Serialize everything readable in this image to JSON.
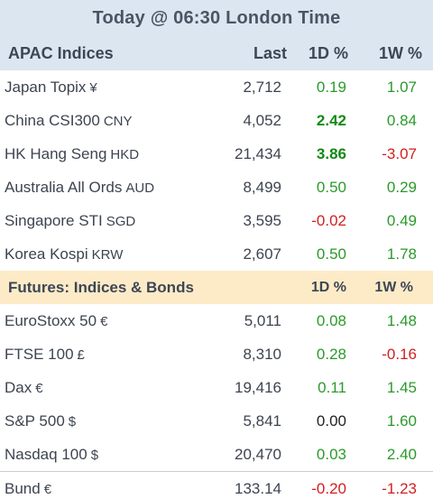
{
  "title": "Today @ 06:30 London Time",
  "apac": {
    "header": {
      "name": "APAC Indices",
      "last": "Last",
      "d1": "1D %",
      "w1": "1W %"
    },
    "rows": [
      {
        "name": "Japan Topix",
        "ccy": "¥",
        "last": "2,712",
        "d1": "0.19",
        "w1": "1.07"
      },
      {
        "name": "China CSI300",
        "ccy": "CNY",
        "last": "4,052",
        "d1": "2.42",
        "w1": "0.84"
      },
      {
        "name": "HK Hang Seng",
        "ccy": "HKD",
        "last": "21,434",
        "d1": "3.86",
        "w1": "-3.07"
      },
      {
        "name": "Australia All Ords",
        "ccy": "AUD",
        "last": "8,499",
        "d1": "0.50",
        "w1": "0.29"
      },
      {
        "name": "Singapore STI",
        "ccy": "SGD",
        "last": "3,595",
        "d1": "-0.02",
        "w1": "0.49"
      },
      {
        "name": "Korea Kospi",
        "ccy": "KRW",
        "last": "2,607",
        "d1": "0.50",
        "w1": "1.78"
      }
    ]
  },
  "futures": {
    "header": {
      "name": "Futures: Indices & Bonds",
      "d1": "1D %",
      "w1": "1W %"
    },
    "rows": [
      {
        "name": "EuroStoxx 50",
        "ccy": "€",
        "last": "5,011",
        "d1": "0.08",
        "w1": "1.48"
      },
      {
        "name": "FTSE 100",
        "ccy": "£",
        "last": "8,310",
        "d1": "0.28",
        "w1": "-0.16"
      },
      {
        "name": "Dax",
        "ccy": "€",
        "last": "19,416",
        "d1": "0.11",
        "w1": "1.45"
      },
      {
        "name": "S&P 500",
        "ccy": "$",
        "last": "5,841",
        "d1": "0.00",
        "w1": "1.60"
      },
      {
        "name": "Nasdaq 100",
        "ccy": "$",
        "last": "20,470",
        "d1": "0.03",
        "w1": "2.40"
      },
      {
        "name": "Bund",
        "ccy": "€",
        "last": "133.14",
        "d1": "-0.20",
        "w1": "-1.23"
      }
    ]
  },
  "colors": {
    "positive": "#2a9a2a",
    "negative": "#d21f1f",
    "neutral": "#222222",
    "header_bg": "#dce6f1",
    "futures_bg": "#fdebc8"
  }
}
